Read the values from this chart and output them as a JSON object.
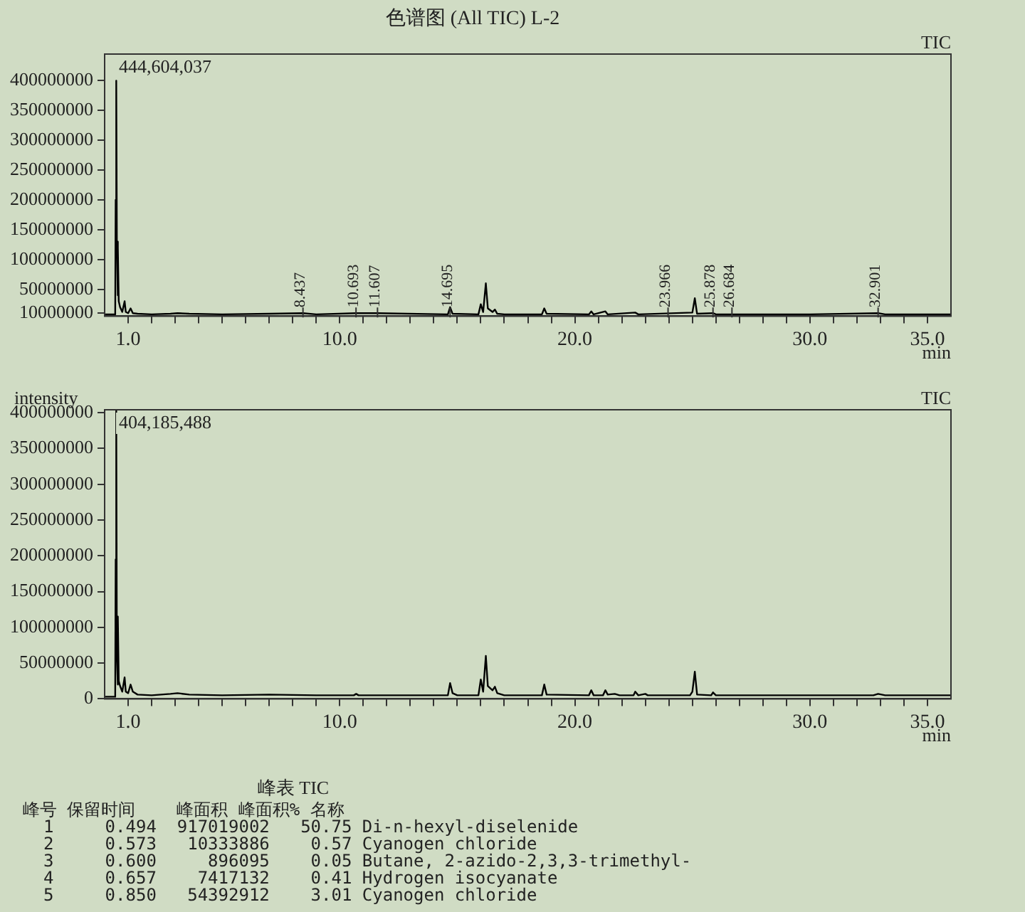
{
  "chart_data": [
    {
      "type": "line",
      "title": "色谱图 (All TIC) L-2",
      "xlabel": "min",
      "grid": false,
      "legend": false,
      "marker": "none",
      "xlim": [
        0,
        36
      ],
      "ylim": [
        5000000,
        444604037
      ],
      "xticks": [
        {
          "value": 1,
          "label": "1.0"
        },
        {
          "value": 2,
          "label": null
        },
        {
          "value": 3,
          "label": null
        },
        {
          "value": 4,
          "label": null
        },
        {
          "value": 5,
          "label": null
        },
        {
          "value": 6,
          "label": null
        },
        {
          "value": 7,
          "label": null
        },
        {
          "value": 8,
          "label": null
        },
        {
          "value": 9,
          "label": null
        },
        {
          "value": 10,
          "label": "10.0"
        },
        {
          "value": 11,
          "label": null
        },
        {
          "value": 12,
          "label": null
        },
        {
          "value": 13,
          "label": null
        },
        {
          "value": 14,
          "label": null
        },
        {
          "value": 15,
          "label": null
        },
        {
          "value": 16,
          "label": null
        },
        {
          "value": 17,
          "label": null
        },
        {
          "value": 18,
          "label": null
        },
        {
          "value": 19,
          "label": null
        },
        {
          "value": 20,
          "label": "20.0"
        },
        {
          "value": 21,
          "label": null
        },
        {
          "value": 22,
          "label": null
        },
        {
          "value": 23,
          "label": null
        },
        {
          "value": 24,
          "label": null
        },
        {
          "value": 25,
          "label": null
        },
        {
          "value": 26,
          "label": null
        },
        {
          "value": 27,
          "label": null
        },
        {
          "value": 28,
          "label": null
        },
        {
          "value": 29,
          "label": null
        },
        {
          "value": 30,
          "label": "30.0"
        },
        {
          "value": 31,
          "label": null
        },
        {
          "value": 32,
          "label": null
        },
        {
          "value": 33,
          "label": null
        },
        {
          "value": 34,
          "label": null
        },
        {
          "value": 35,
          "label": "35.0"
        }
      ],
      "yticks": [
        10000000,
        50000000,
        100000000,
        150000000,
        200000000,
        250000000,
        300000000,
        350000000,
        400000000
      ],
      "annotations": [
        "444,604,037",
        "TIC",
        {
          "text": "8.437",
          "x": 8.437,
          "y": 10000000
        },
        {
          "text": "10.693",
          "x": 10.693,
          "y": 10000000
        },
        {
          "text": "11.607",
          "x": 11.607,
          "y": 10000000
        },
        {
          "text": "14.695",
          "x": 14.695,
          "y": 10000000
        },
        {
          "text": "23.966",
          "x": 23.966,
          "y": 10000000
        },
        {
          "text": "25.878",
          "x": 25.878,
          "y": 10000000
        },
        {
          "text": "26.684",
          "x": 26.684,
          "y": 10000000
        },
        {
          "text": "32.901",
          "x": 32.901,
          "y": 10000000
        }
      ],
      "series": [
        {
          "color": "#000000",
          "x": [
            0,
            0.4,
            0.45,
            0.47,
            0.494,
            0.52,
            0.55,
            0.573,
            0.6,
            0.657,
            0.75,
            0.85,
            0.9,
            1.0,
            1.104,
            1.2,
            1.4,
            2.0,
            2.8,
            3.1,
            3.6,
            5,
            7,
            8.437,
            9,
            10.693,
            11.607,
            14.6,
            14.695,
            14.8,
            15.9,
            16.0,
            16.1,
            16.215,
            16.3,
            16.5,
            16.6,
            16.7,
            17,
            18.6,
            18.7,
            18.8,
            20.6,
            20.7,
            20.8,
            21.3,
            21.4,
            22.57,
            22.7,
            25.0,
            25.104,
            25.2,
            25.878,
            26,
            30,
            32.9,
            33.2,
            36
          ],
          "values": [
            8000000,
            8000000,
            10000000,
            200000000,
            400000000,
            130000000,
            40000000,
            120000000,
            30000000,
            20000000,
            12000000,
            30000000,
            12000000,
            10000000,
            18000000,
            10000000,
            9000000,
            8000000,
            9000000,
            10000000,
            9000000,
            8000000,
            9000000,
            10000000,
            8000000,
            10000000,
            10000000,
            8000000,
            20000000,
            9000000,
            8000000,
            25000000,
            12000000,
            60000000,
            18000000,
            12000000,
            16000000,
            9000000,
            8000000,
            8000000,
            18000000,
            9000000,
            8000000,
            13000000,
            8000000,
            13000000,
            8000000,
            11000000,
            8000000,
            11000000,
            35000000,
            9000000,
            10000000,
            8000000,
            8000000,
            10000000,
            8000000,
            8000000
          ]
        }
      ]
    },
    {
      "type": "line",
      "ylabel": "intensity",
      "xlabel": "min",
      "grid": false,
      "legend": false,
      "marker": "none",
      "xlim": [
        0,
        36
      ],
      "ylim": [
        0,
        404185488
      ],
      "xticks": [
        {
          "value": 1,
          "label": "1.0"
        },
        {
          "value": 2,
          "label": null
        },
        {
          "value": 3,
          "label": null
        },
        {
          "value": 4,
          "label": null
        },
        {
          "value": 5,
          "label": null
        },
        {
          "value": 6,
          "label": null
        },
        {
          "value": 7,
          "label": null
        },
        {
          "value": 8,
          "label": null
        },
        {
          "value": 9,
          "label": null
        },
        {
          "value": 10,
          "label": "10.0"
        },
        {
          "value": 11,
          "label": null
        },
        {
          "value": 12,
          "label": null
        },
        {
          "value": 13,
          "label": null
        },
        {
          "value": 14,
          "label": null
        },
        {
          "value": 15,
          "label": null
        },
        {
          "value": 16,
          "label": null
        },
        {
          "value": 17,
          "label": null
        },
        {
          "value": 18,
          "label": null
        },
        {
          "value": 19,
          "label": null
        },
        {
          "value": 20,
          "label": "20.0"
        },
        {
          "value": 21,
          "label": null
        },
        {
          "value": 22,
          "label": null
        },
        {
          "value": 23,
          "label": null
        },
        {
          "value": 24,
          "label": null
        },
        {
          "value": 25,
          "label": null
        },
        {
          "value": 26,
          "label": null
        },
        {
          "value": 27,
          "label": null
        },
        {
          "value": 28,
          "label": null
        },
        {
          "value": 29,
          "label": null
        },
        {
          "value": 30,
          "label": "30.0"
        },
        {
          "value": 31,
          "label": null
        },
        {
          "value": 32,
          "label": null
        },
        {
          "value": 33,
          "label": null
        },
        {
          "value": 34,
          "label": null
        },
        {
          "value": 35,
          "label": "35.0"
        }
      ],
      "yticks": [
        0,
        50000000,
        100000000,
        150000000,
        200000000,
        250000000,
        300000000,
        350000000,
        400000000
      ],
      "annotations": [
        "404,185,488",
        "TIC"
      ],
      "series": [
        {
          "color": "#000000",
          "x": [
            0,
            0.4,
            0.45,
            0.47,
            0.494,
            0.52,
            0.55,
            0.573,
            0.6,
            0.657,
            0.75,
            0.85,
            0.9,
            1.0,
            1.104,
            1.2,
            1.4,
            2.0,
            2.8,
            3.1,
            3.6,
            5,
            7,
            9,
            10.6,
            10.7,
            10.8,
            14.6,
            14.695,
            14.8,
            15,
            15.9,
            16.0,
            16.1,
            16.215,
            16.3,
            16.5,
            16.6,
            16.7,
            17,
            18.6,
            18.7,
            18.8,
            20.6,
            20.7,
            20.8,
            21.2,
            21.3,
            21.4,
            21.7,
            21.9,
            22.5,
            22.57,
            22.7,
            23.0,
            23.1,
            24.9,
            25.0,
            25.104,
            25.2,
            25.8,
            25.878,
            26,
            30,
            32.7,
            32.9,
            33.2,
            36
          ],
          "values": [
            3000000,
            3000000,
            5000000,
            195000000,
            404000000,
            60000000,
            20000000,
            115000000,
            25000000,
            18000000,
            10000000,
            30000000,
            10000000,
            8000000,
            20000000,
            10000000,
            6000000,
            5000000,
            7000000,
            8000000,
            6000000,
            5000000,
            6000000,
            5000000,
            5000000,
            7000000,
            5000000,
            5000000,
            22000000,
            8000000,
            5000000,
            5000000,
            27000000,
            10000000,
            60000000,
            18000000,
            12000000,
            17000000,
            8000000,
            5000000,
            5000000,
            20000000,
            6000000,
            5000000,
            12000000,
            5000000,
            5000000,
            12000000,
            6000000,
            7000000,
            5000000,
            5000000,
            10000000,
            5000000,
            7000000,
            5000000,
            5000000,
            10000000,
            38000000,
            6000000,
            5000000,
            9000000,
            5000000,
            5000000,
            5000000,
            7000000,
            5000000,
            5000000
          ]
        }
      ]
    },
    {
      "type": "other",
      "title": "峰表 TIC",
      "annotations": [
        "峰号 保留时间    峰面积 峰面积% 名称",
        "  1     0.494  917019002   50.75 Di-n-hexyl-diselenide",
        "  2     0.573   10333886    0.57 Cyanogen chloride",
        "  3     0.600     896095    0.05 Butane, 2-azido-2,3,3-trimethyl-",
        "  4     0.657    7417132    0.41 Hydrogen isocyanate",
        "  5     0.850   54392912    3.01 Cyanogen chloride"
      ]
    }
  ]
}
